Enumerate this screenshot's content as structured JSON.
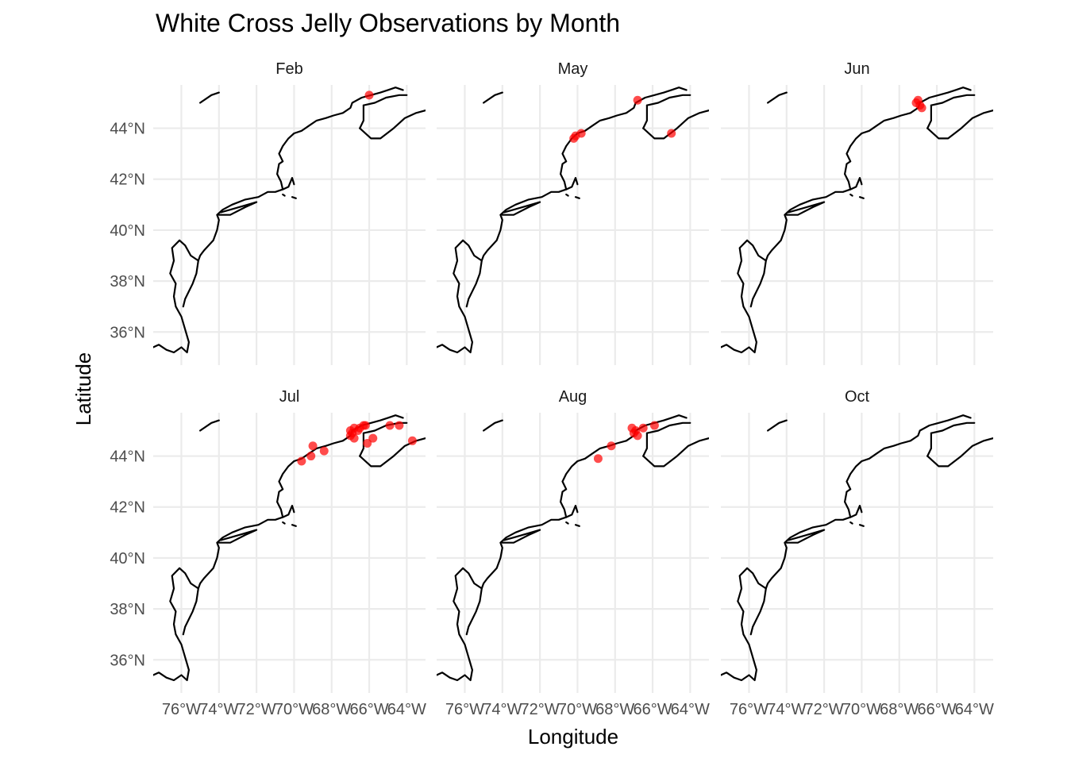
{
  "chart_data": {
    "type": "scatter",
    "title": "White Cross Jelly Observations by Month",
    "xlabel": "Longitude",
    "ylabel": "Latitude",
    "xlim": [
      -77.5,
      -63.0
    ],
    "ylim": [
      34.7,
      45.7
    ],
    "x_ticks": [
      -76,
      -74,
      -72,
      -70,
      -68,
      -66,
      -64
    ],
    "x_tick_labels": [
      "76°W",
      "74°W",
      "72°W",
      "70°W",
      "68°W",
      "66°W",
      "64°W"
    ],
    "y_ticks": [
      36,
      38,
      40,
      42,
      44
    ],
    "y_tick_labels": [
      "36°N",
      "38°N",
      "40°N",
      "42°N",
      "44°N"
    ],
    "grid": true,
    "point_color": "#ff0000",
    "facets": [
      {
        "label": "Feb",
        "points": [
          [
            -66.0,
            45.3
          ]
        ]
      },
      {
        "label": "May",
        "points": [
          [
            -70.2,
            43.6
          ],
          [
            -70.1,
            43.7
          ],
          [
            -69.8,
            43.8
          ],
          [
            -66.8,
            45.1
          ],
          [
            -65.0,
            43.8
          ]
        ]
      },
      {
        "label": "Jun",
        "points": [
          [
            -67.1,
            45.0
          ],
          [
            -67.0,
            45.1
          ],
          [
            -66.9,
            44.9
          ],
          [
            -66.8,
            44.8
          ]
        ]
      },
      {
        "label": "Jul",
        "points": [
          [
            -69.6,
            43.8
          ],
          [
            -69.1,
            44.0
          ],
          [
            -69.0,
            44.4
          ],
          [
            -68.4,
            44.2
          ],
          [
            -67.0,
            45.0
          ],
          [
            -67.0,
            44.8
          ],
          [
            -66.9,
            44.9
          ],
          [
            -66.8,
            45.1
          ],
          [
            -66.8,
            44.7
          ],
          [
            -66.6,
            45.0
          ],
          [
            -66.5,
            45.1
          ],
          [
            -66.3,
            45.2
          ],
          [
            -66.2,
            45.2
          ],
          [
            -66.1,
            44.5
          ],
          [
            -65.8,
            44.7
          ],
          [
            -64.9,
            45.2
          ],
          [
            -64.4,
            45.2
          ],
          [
            -63.7,
            44.6
          ]
        ]
      },
      {
        "label": "Aug",
        "points": [
          [
            -68.9,
            43.9
          ],
          [
            -68.2,
            44.4
          ],
          [
            -67.1,
            45.1
          ],
          [
            -67.0,
            44.9
          ],
          [
            -66.9,
            45.0
          ],
          [
            -66.8,
            44.8
          ],
          [
            -66.5,
            45.1
          ],
          [
            -65.9,
            45.2
          ]
        ]
      },
      {
        "label": "Oct",
        "points": []
      }
    ],
    "coastline": [
      [
        [
          -77.5,
          35.4
        ],
        [
          -77.2,
          35.5
        ],
        [
          -76.8,
          35.3
        ],
        [
          -76.4,
          35.2
        ],
        [
          -76.0,
          35.4
        ],
        [
          -75.7,
          35.2
        ],
        [
          -75.6,
          35.6
        ],
        [
          -75.8,
          36.1
        ],
        [
          -76.0,
          36.6
        ],
        [
          -76.3,
          37.0
        ],
        [
          -76.4,
          37.4
        ],
        [
          -76.3,
          37.9
        ],
        [
          -76.6,
          38.3
        ],
        [
          -76.4,
          38.8
        ],
        [
          -76.5,
          39.3
        ],
        [
          -76.1,
          39.6
        ],
        [
          -75.8,
          39.4
        ],
        [
          -75.5,
          39.0
        ],
        [
          -75.1,
          38.8
        ],
        [
          -75.2,
          38.3
        ],
        [
          -75.4,
          37.9
        ],
        [
          -75.8,
          37.3
        ],
        [
          -75.9,
          37.0
        ]
      ],
      [
        [
          -75.1,
          38.8
        ],
        [
          -75.0,
          39.0
        ],
        [
          -74.8,
          39.2
        ],
        [
          -74.3,
          39.6
        ],
        [
          -74.1,
          40.0
        ],
        [
          -74.0,
          40.4
        ],
        [
          -74.1,
          40.6
        ],
        [
          -73.8,
          40.8
        ],
        [
          -73.3,
          41.0
        ],
        [
          -72.6,
          41.2
        ],
        [
          -71.9,
          41.3
        ],
        [
          -71.4,
          41.5
        ],
        [
          -71.0,
          41.5
        ],
        [
          -70.6,
          41.6
        ],
        [
          -70.7,
          41.9
        ],
        [
          -70.9,
          42.2
        ],
        [
          -70.8,
          42.6
        ],
        [
          -70.6,
          42.7
        ],
        [
          -70.8,
          43.0
        ],
        [
          -70.6,
          43.3
        ],
        [
          -70.3,
          43.6
        ],
        [
          -70.0,
          43.8
        ],
        [
          -69.6,
          43.9
        ],
        [
          -69.2,
          44.1
        ],
        [
          -68.8,
          44.3
        ],
        [
          -68.3,
          44.4
        ],
        [
          -67.9,
          44.5
        ],
        [
          -67.4,
          44.6
        ],
        [
          -67.0,
          44.8
        ],
        [
          -66.9,
          45.0
        ],
        [
          -66.4,
          45.2
        ],
        [
          -65.9,
          45.3
        ],
        [
          -65.4,
          45.4
        ],
        [
          -65.0,
          45.5
        ],
        [
          -64.6,
          45.6
        ],
        [
          -64.2,
          45.5
        ]
      ],
      [
        [
          -73.9,
          40.7
        ],
        [
          -73.4,
          40.8
        ],
        [
          -72.7,
          40.95
        ],
        [
          -72.0,
          41.1
        ],
        [
          -72.6,
          40.9
        ],
        [
          -73.4,
          40.6
        ],
        [
          -74.0,
          40.6
        ]
      ],
      [
        [
          -70.0,
          41.8
        ],
        [
          -70.1,
          42.05
        ],
        [
          -70.3,
          41.7
        ],
        [
          -70.6,
          41.6
        ]
      ],
      [
        [
          -70.6,
          41.4
        ],
        [
          -70.5,
          41.35
        ]
      ],
      [
        [
          -70.1,
          41.3
        ],
        [
          -69.9,
          41.25
        ]
      ],
      [
        [
          -66.5,
          44.0
        ],
        [
          -65.9,
          43.6
        ],
        [
          -65.4,
          43.6
        ],
        [
          -64.7,
          44.0
        ],
        [
          -64.1,
          44.4
        ],
        [
          -63.5,
          44.6
        ],
        [
          -63.0,
          44.7
        ]
      ],
      [
        [
          -66.3,
          44.9
        ],
        [
          -65.7,
          45.0
        ],
        [
          -65.1,
          45.2
        ],
        [
          -64.4,
          45.3
        ],
        [
          -64.0,
          45.3
        ]
      ],
      [
        [
          -66.5,
          44.0
        ],
        [
          -66.3,
          44.3
        ],
        [
          -66.3,
          44.9
        ]
      ],
      [
        [
          -75.0,
          45.0
        ],
        [
          -74.4,
          45.3
        ],
        [
          -74.0,
          45.4
        ]
      ]
    ]
  }
}
